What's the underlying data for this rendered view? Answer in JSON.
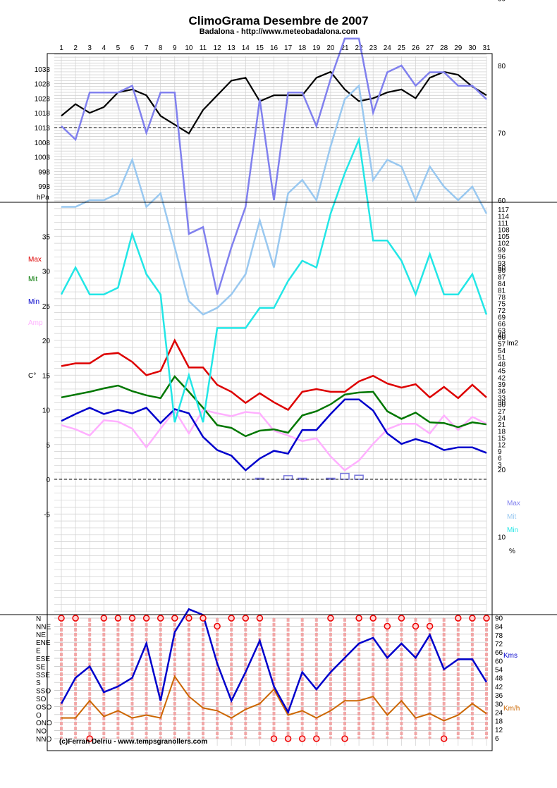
{
  "title": "ClimoGrama Desembre de 2007",
  "subtitle": "Badalona - http://www.meteobadalona.com",
  "credit": "(c)Ferran Delriu - www.tempsgranollers.com",
  "colors": {
    "pressure": "#000000",
    "max": "#dd0000",
    "mit": "#007700",
    "min": "#0000cc",
    "amp": "#ffb0ff",
    "rain": "#7777dd",
    "hum_max": "#8080ee",
    "hum_mit": "#99c8f0",
    "hum_min": "#22e6e6",
    "wind_speed": "#0000cc",
    "gust": "#cc6600",
    "dir_marker": "#ee0000",
    "dir_band": "#f2a0a0"
  },
  "chart_data": [
    {
      "type": "line",
      "name": "pressure-panel",
      "x": [
        1,
        2,
        3,
        4,
        5,
        6,
        7,
        8,
        9,
        10,
        11,
        12,
        13,
        14,
        15,
        16,
        17,
        18,
        19,
        20,
        21,
        22,
        23,
        24,
        25,
        26,
        27,
        28,
        29,
        30,
        31
      ],
      "series": [
        {
          "values": [
            1017,
            1021,
            1018,
            1020,
            1025,
            1026,
            1024,
            1017,
            1014,
            1011,
            1019,
            1024,
            1029,
            1030,
            1022,
            1024,
            1024,
            1024,
            1030,
            1032,
            1026,
            1022,
            1023,
            1025,
            1026,
            1023,
            1030,
            1032,
            1031,
            1027,
            1024
          ]
        }
      ],
      "reference_line": 1013,
      "ylim": [
        988,
        1038
      ],
      "y_tick_labels": [
        "1033",
        "1028",
        "1023",
        "1018",
        "1013",
        "1008",
        "1003",
        "998",
        "993"
      ],
      "ylabel": "hPa",
      "grid": true
    },
    {
      "type": "line",
      "name": "temperature-panel",
      "x": [
        1,
        2,
        3,
        4,
        5,
        6,
        7,
        8,
        9,
        10,
        11,
        12,
        13,
        14,
        15,
        16,
        17,
        18,
        19,
        20,
        21,
        22,
        23,
        24,
        25,
        26,
        27,
        28,
        29,
        30,
        31
      ],
      "series": [
        {
          "name": "Max",
          "values": [
            16.3,
            16.7,
            16.7,
            18.0,
            18.2,
            16.9,
            15.0,
            15.6,
            20.0,
            16.1,
            16.1,
            13.6,
            12.6,
            11.0,
            12.4,
            11.1,
            10.0,
            12.6,
            13.0,
            12.6,
            12.6,
            14.1,
            14.9,
            13.8,
            13.2,
            13.7,
            11.8,
            13.3,
            11.7,
            13.6,
            11.8
          ]
        },
        {
          "name": "Mit",
          "values": [
            11.8,
            12.2,
            12.6,
            13.1,
            13.5,
            12.7,
            12.1,
            11.7,
            14.8,
            12.6,
            10.3,
            7.8,
            7.4,
            6.2,
            7.0,
            7.2,
            6.7,
            9.2,
            9.8,
            10.8,
            12.2,
            12.5,
            12.6,
            9.8,
            8.7,
            9.6,
            8.2,
            8.1,
            7.5,
            8.2,
            7.9
          ]
        },
        {
          "name": "Min",
          "values": [
            8.4,
            9.4,
            10.3,
            9.4,
            10.0,
            9.5,
            10.3,
            8.1,
            10.1,
            9.5,
            6.1,
            4.2,
            3.4,
            1.3,
            3.0,
            4.1,
            3.7,
            7.1,
            7.1,
            9.4,
            11.5,
            11.5,
            9.9,
            6.6,
            5.1,
            5.8,
            5.2,
            4.2,
            4.6,
            4.6,
            3.8
          ]
        },
        {
          "name": "Amp",
          "values": [
            7.8,
            7.2,
            6.3,
            8.5,
            8.3,
            7.3,
            4.6,
            7.3,
            9.9,
            6.6,
            10.0,
            9.5,
            9.1,
            9.7,
            9.5,
            7.0,
            6.3,
            5.5,
            5.9,
            3.3,
            1.3,
            2.7,
            5.1,
            7.2,
            8.0,
            8.0,
            6.6,
            9.2,
            7.1,
            9.0,
            8.0
          ]
        }
      ],
      "ylabel": "C°",
      "y_tick_labels": [
        "35",
        "30",
        "25",
        "20",
        "15",
        "10",
        "5",
        "0",
        "-5"
      ],
      "rain_bars": {
        "days": [
          15,
          17,
          18,
          20,
          21,
          22
        ],
        "values": [
          0.1,
          0.8,
          0.2,
          0.2,
          1.3,
          0.9
        ]
      },
      "right_axis": {
        "label": "lm2",
        "tick_labels": [
          "117",
          "114",
          "111",
          "108",
          "105",
          "102",
          "99",
          "96",
          "93",
          "90",
          "87",
          "84",
          "81",
          "78",
          "75",
          "72",
          "69",
          "66",
          "63",
          "60",
          "57",
          "54",
          "51",
          "48",
          "45",
          "42",
          "39",
          "36",
          "33",
          "30",
          "27",
          "24",
          "21",
          "18",
          "15",
          "12",
          "9",
          "6",
          "3"
        ]
      },
      "grid": true
    },
    {
      "type": "line",
      "name": "humidity-panel",
      "x": [
        1,
        2,
        3,
        4,
        5,
        6,
        7,
        8,
        9,
        10,
        11,
        12,
        13,
        14,
        15,
        16,
        17,
        18,
        19,
        20,
        21,
        22,
        23,
        24,
        25,
        26,
        27,
        28,
        29,
        30,
        31
      ],
      "series": [
        {
          "name": "Max",
          "values": [
            71,
            69,
            76,
            76,
            76,
            77,
            70,
            76,
            76,
            55,
            56,
            46,
            53,
            59,
            75,
            60,
            76,
            76,
            71,
            78,
            84,
            84,
            73,
            79,
            80,
            77,
            79,
            79,
            77,
            77,
            75
          ]
        },
        {
          "name": "Mit",
          "values": [
            59,
            59,
            60,
            60,
            61,
            66,
            59,
            61,
            53,
            45,
            43,
            44,
            46,
            49,
            57,
            50,
            61,
            63,
            60,
            68,
            75,
            77,
            63,
            66,
            65,
            60,
            65,
            62,
            60,
            62,
            58
          ]
        },
        {
          "name": "Min",
          "values": [
            46,
            50,
            46,
            46,
            47,
            55,
            49,
            46,
            27,
            34,
            27,
            41,
            41,
            41,
            44,
            44,
            48,
            51,
            50,
            58,
            64,
            69,
            54,
            54,
            51,
            46,
            52,
            46,
            46,
            49,
            43
          ]
        }
      ],
      "right_axis": {
        "unit": "%",
        "tick_labels": [
          "90",
          "80",
          "70",
          "60",
          "50",
          "40",
          "30",
          "20",
          "10"
        ]
      },
      "grid": true
    },
    {
      "type": "line",
      "name": "wind-panel",
      "x": [
        1,
        2,
        3,
        4,
        5,
        6,
        7,
        8,
        9,
        10,
        11,
        12,
        13,
        14,
        15,
        16,
        17,
        18,
        19,
        20,
        21,
        22,
        23,
        24,
        25,
        26,
        27,
        28,
        29,
        30,
        31
      ],
      "y_tick_labels": [
        "N",
        "NNE",
        "NE",
        "ENE",
        "E",
        "ESE",
        "SE",
        "SSE",
        "S",
        "SSO",
        "SO",
        "OSO",
        "O",
        "ONO",
        "NO",
        "NNO"
      ],
      "dominant_direction": [
        "N",
        "N",
        "NNO",
        "N",
        "N",
        "N",
        "N",
        "N",
        "N",
        "N",
        "N",
        "NNE",
        "N",
        "N",
        "N",
        "NNO",
        "NNO",
        "NNO",
        "NNO",
        "N",
        "NNO",
        "N",
        "N",
        "NNE",
        "N",
        "NNE",
        "NNE",
        "NNO",
        "N",
        "N",
        "N"
      ],
      "series": [
        {
          "name": "Kms",
          "values": [
            30,
            48,
            56,
            38,
            42,
            48,
            72,
            32,
            80,
            96,
            92,
            58,
            32,
            52,
            74,
            42,
            24,
            52,
            40,
            52,
            62,
            72,
            76,
            62,
            72,
            62,
            78,
            54,
            61,
            61,
            45
          ]
        },
        {
          "name": "Km/h",
          "values": [
            20,
            20,
            32,
            21,
            25,
            20,
            22,
            20,
            49,
            35,
            27,
            25,
            20,
            26,
            30,
            40,
            22,
            25,
            20,
            25,
            32,
            32,
            35,
            22,
            32,
            20,
            23,
            18,
            22,
            30,
            23
          ]
        }
      ],
      "right_axis": {
        "tick_labels": [
          "90",
          "84",
          "78",
          "72",
          "66",
          "60",
          "54",
          "48",
          "42",
          "36",
          "30",
          "24",
          "18",
          "12",
          "6"
        ]
      },
      "grid": true
    }
  ]
}
